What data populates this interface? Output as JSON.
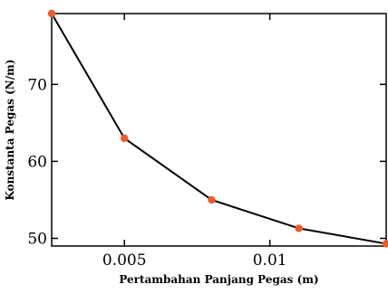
{
  "chart_data": {
    "type": "line",
    "xlabel": "Pertambahan Panjang Pegas (m)",
    "ylabel": "Konstanta Pegas (N/m)",
    "xlim": [
      0.0025,
      0.014
    ],
    "ylim": [
      49,
      79.2
    ],
    "x_ticks": [
      0.005,
      0.01
    ],
    "x_tick_labels": [
      "0.005",
      "0.01"
    ],
    "y_ticks": [
      50,
      60,
      70
    ],
    "y_tick_labels": [
      "50",
      "60",
      "70"
    ],
    "grid": false,
    "series": [
      {
        "x": [
          0.0025,
          0.005,
          0.008,
          0.011,
          0.014
        ],
        "y": [
          79.2,
          63,
          55,
          51.3,
          49.3
        ]
      }
    ],
    "colors": {
      "line": "#000000",
      "marker": "#f05a28"
    }
  }
}
